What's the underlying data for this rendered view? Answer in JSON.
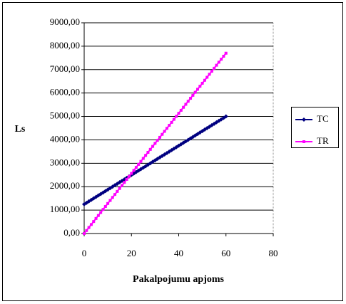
{
  "chart_data": {
    "type": "line",
    "y_label": "Ls",
    "x_label": "Pakalpojumu apjoms",
    "x": [
      0,
      1,
      2,
      3,
      4,
      5,
      6,
      7,
      8,
      9,
      10,
      11,
      12,
      13,
      14,
      15,
      16,
      17,
      18,
      19,
      20,
      21,
      22,
      23,
      24,
      25,
      26,
      27,
      28,
      29,
      30,
      31,
      32,
      33,
      34,
      35,
      36,
      37,
      38,
      39,
      40,
      41,
      42,
      43,
      44,
      45,
      46,
      47,
      48,
      49,
      50,
      51,
      52,
      53,
      54,
      55,
      56,
      57,
      58,
      59,
      60
    ],
    "series": [
      {
        "name": "TC",
        "color": "#000080",
        "marker": "diamond",
        "values": [
          1250,
          1312.5,
          1375,
          1437.5,
          1500,
          1562.5,
          1625,
          1687.5,
          1750,
          1812.5,
          1875,
          1937.5,
          2000,
          2062.5,
          2125,
          2187.5,
          2250,
          2312.5,
          2375,
          2437.5,
          2500,
          2562.5,
          2625,
          2687.5,
          2750,
          2812.5,
          2875,
          2937.5,
          3000,
          3062.5,
          3125,
          3187.5,
          3250,
          3312.5,
          3375,
          3437.5,
          3500,
          3562.5,
          3625,
          3687.5,
          3750,
          3812.5,
          3875,
          3937.5,
          4000,
          4062.5,
          4125,
          4187.5,
          4250,
          4312.5,
          4375,
          4437.5,
          4500,
          4562.5,
          4625,
          4687.5,
          4750,
          4812.5,
          4875,
          4937.5,
          5000
        ]
      },
      {
        "name": "TR",
        "color": "#ff00ff",
        "marker": "square",
        "values": [
          0,
          128,
          257,
          385,
          513,
          642,
          770,
          898,
          1027,
          1155,
          1283,
          1412,
          1540,
          1668,
          1797,
          1925,
          2053,
          2182,
          2310,
          2438,
          2567,
          2695,
          2823,
          2952,
          3080,
          3208,
          3337,
          3465,
          3593,
          3722,
          3850,
          3978,
          4107,
          4235,
          4363,
          4492,
          4620,
          4748,
          4877,
          5005,
          5133,
          5262,
          5390,
          5518,
          5647,
          5775,
          5903,
          6032,
          6160,
          6288,
          6417,
          6545,
          6673,
          6802,
          6930,
          7058,
          7187,
          7315,
          7443,
          7572,
          7700
        ]
      }
    ],
    "xlim": [
      0,
      80
    ],
    "xticks": [
      0,
      20,
      40,
      60,
      80
    ],
    "ylim": [
      0,
      9000
    ],
    "yticks": [
      {
        "value": 0,
        "label": "0,00"
      },
      {
        "value": 1000,
        "label": "1000,00"
      },
      {
        "value": 2000,
        "label": "2000,00"
      },
      {
        "value": 3000,
        "label": "3000,00"
      },
      {
        "value": 4000,
        "label": "4000,00"
      },
      {
        "value": 5000,
        "label": "5000,00"
      },
      {
        "value": 6000,
        "label": "6000,00"
      },
      {
        "value": 7000,
        "label": "7000,00"
      },
      {
        "value": 8000,
        "label": "8000,00"
      },
      {
        "value": 9000,
        "label": "9000,00"
      }
    ],
    "grid": true,
    "legend": "right"
  }
}
